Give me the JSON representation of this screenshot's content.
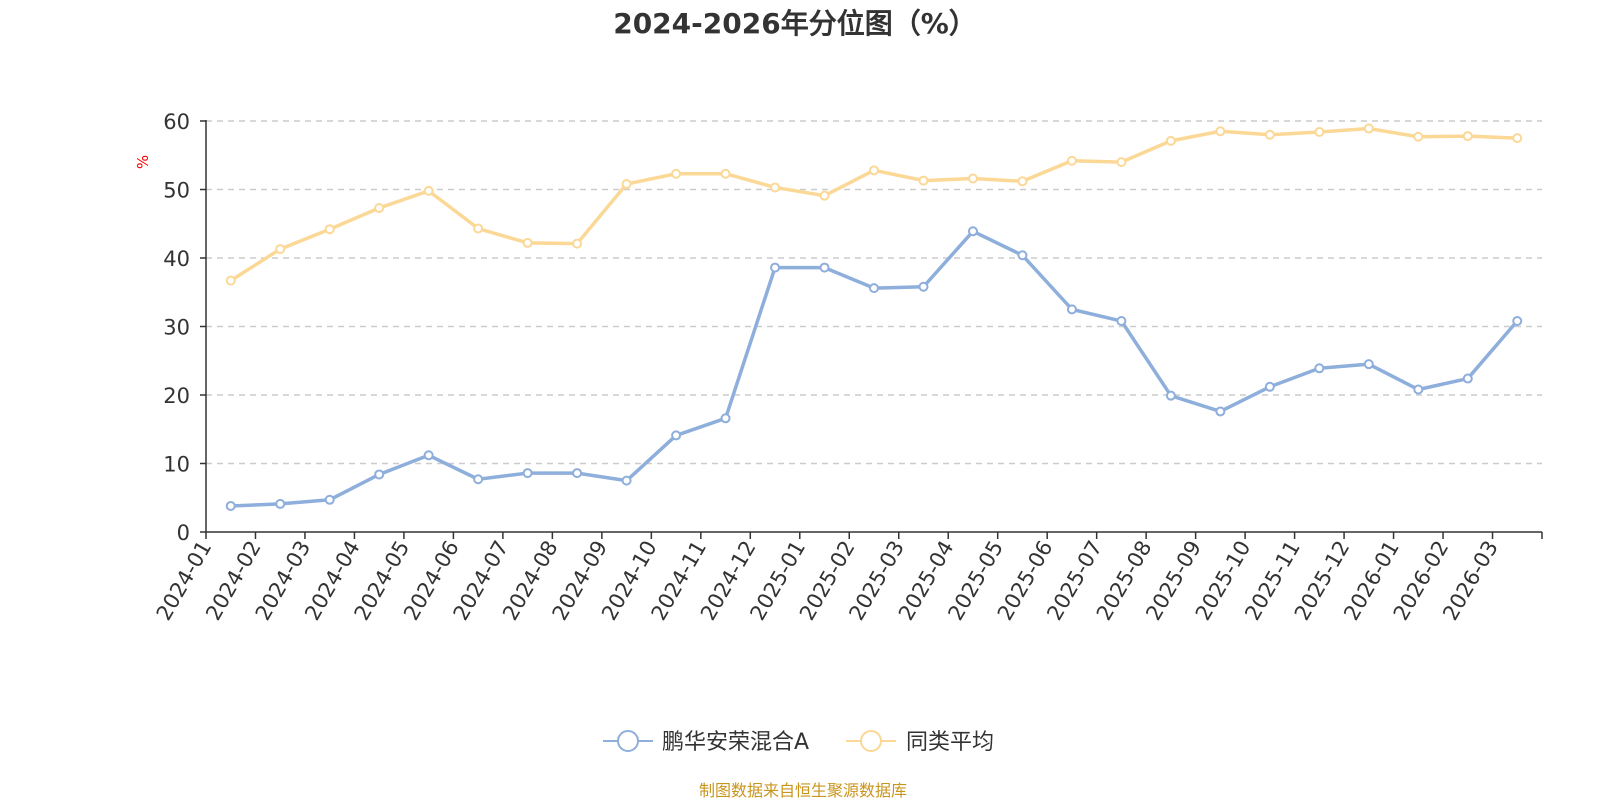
{
  "chart_data": {
    "type": "line",
    "title": "2024-2026年分位图（%）",
    "ylabel": "%",
    "xlabel": "",
    "ylim": [
      0,
      60
    ],
    "yticks": [
      0,
      10,
      20,
      30,
      40,
      50,
      60
    ],
    "grid": true,
    "legend_position": "bottom-center",
    "categories": [
      "2024-01",
      "2024-02",
      "2024-03",
      "2024-04",
      "2024-05",
      "2024-06",
      "2024-07",
      "2024-08",
      "2024-09",
      "2024-10",
      "2024-11",
      "2024-12",
      "2025-01",
      "2025-02",
      "2025-03",
      "2025-04",
      "2025-05",
      "2025-06",
      "2025-07",
      "2025-08",
      "2025-09",
      "2025-10",
      "2025-11",
      "2025-12",
      "2026-01",
      "2026-02",
      "2026-03"
    ],
    "series": [
      {
        "name": "鹏华安荣混合A",
        "color": "#8eaedb",
        "values": [
          3.8,
          4.1,
          4.7,
          8.4,
          11.2,
          7.7,
          8.6,
          8.6,
          7.5,
          14.1,
          16.6,
          38.6,
          38.6,
          35.6,
          35.8,
          43.9,
          40.4,
          32.5,
          30.8,
          19.9,
          17.6,
          21.2,
          23.9,
          24.5,
          20.8,
          22.4,
          30.8
        ]
      },
      {
        "name": "同类平均",
        "color": "#fbd896",
        "values": [
          36.7,
          41.3,
          44.2,
          47.3,
          49.8,
          44.3,
          42.2,
          42.1,
          50.8,
          52.3,
          52.3,
          50.3,
          49.1,
          52.8,
          51.3,
          51.6,
          51.2,
          54.2,
          54.0,
          57.1,
          58.5,
          58.0,
          58.4,
          58.9,
          57.7,
          57.8,
          57.5
        ]
      }
    ]
  },
  "source": "制图数据来自恒生聚源数据库"
}
